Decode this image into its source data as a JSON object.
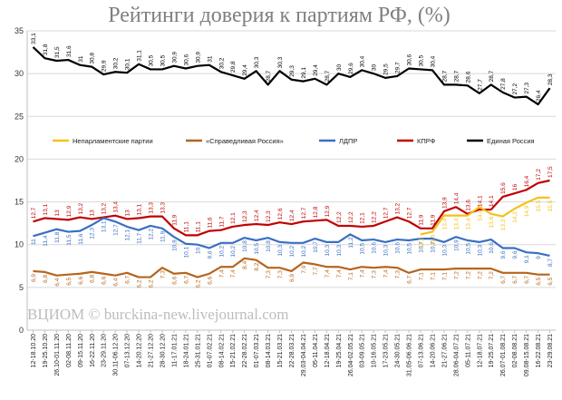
{
  "watermark": "ВЦИОМ © burckina-new.livejournal.com",
  "chart_data": {
    "type": "line",
    "title": "Рейтинги доверия к партиям РФ, (%)",
    "xlabel": "",
    "ylabel": "",
    "ylim": [
      0,
      35
    ],
    "yticks": [
      0,
      5,
      10,
      15,
      20,
      25,
      30,
      35
    ],
    "grid": true,
    "legend_position": "middle-left",
    "x": [
      "12-18.10.20",
      "19-25.10.20",
      "26.10-01.11.20",
      "02-08.11.20",
      "09-15.11.20",
      "16-22.11.20",
      "23-29.11.20",
      "30.11-06.12.20",
      "07-13.12.20",
      "14-20.12.20",
      "21-27.12.20",
      "28-30.12.20",
      "11-17.01.21",
      "18-24.01.21",
      "25-31.01.21",
      "01-07.02.21",
      "08-14.02.21",
      "15-21.02.21",
      "22-28.02.21",
      "01-07.03.21",
      "08-14.03.21",
      "15-21.03.21",
      "22-28.03.21",
      "29.03-04.04.21",
      "05-11.04.21",
      "12-18.04.21",
      "19-25.04.21",
      "26.04-02.05.21",
      "03-09.05.21",
      "10-16.05.21",
      "17-23.05.21",
      "24-30.05.21",
      "31.05-06.06.21",
      "07-13.06.21",
      "14-20.06.21",
      "21-27.06.21",
      "28.06-04.07.21",
      "05-11.07.21",
      "12-18.07.21",
      "19-25.07.21",
      "26.07-01.08.21",
      "02-08.08.21",
      "09.08-15.08.21",
      "16-22.08.21",
      "23-29.08.21"
    ],
    "series": [
      {
        "name": "Единая Россия",
        "color": "#000000",
        "values": [
          33.1,
          31.8,
          31.5,
          31.6,
          31,
          30.8,
          29.9,
          30.2,
          30.1,
          31.1,
          30.5,
          30.5,
          30.9,
          30.6,
          30.9,
          31,
          30.2,
          29.8,
          29.4,
          30.3,
          28.7,
          30.3,
          29.3,
          29.1,
          29.4,
          28.7,
          30,
          29.6,
          30.4,
          30,
          29.5,
          29.7,
          30.6,
          30.5,
          30.4,
          28.7,
          28.7,
          28.6,
          27.7,
          28.7,
          27.8,
          27.2,
          27.3,
          26.4,
          28.3
        ]
      },
      {
        "name": "КПРФ",
        "color": "#c00000",
        "values": [
          12.7,
          13.1,
          13,
          12.9,
          13.2,
          13,
          13.2,
          13.4,
          13,
          13.1,
          13.3,
          13.3,
          11.9,
          11.1,
          11.1,
          11.6,
          11.7,
          12.1,
          12.3,
          12.4,
          12.3,
          12.6,
          12.4,
          12.7,
          12.8,
          12.9,
          12.2,
          12.2,
          12.1,
          12.2,
          12.7,
          13.2,
          12.7,
          11.9,
          11.9,
          13.9,
          14.4,
          13.6,
          14.1,
          14.1,
          15.6,
          16,
          16.4,
          17.2,
          17.5
        ]
      },
      {
        "name": "ЛДПР",
        "color": "#3a6fc4",
        "values": [
          11,
          11.4,
          11.8,
          11.5,
          11.6,
          12.3,
          13.1,
          12.7,
          12.1,
          11.7,
          12.2,
          11.9,
          10.9,
          10.1,
          10,
          9.6,
          10.2,
          10.2,
          10.8,
          10.5,
          10.8,
          10.3,
          10.2,
          10.2,
          10.7,
          10.3,
          10.3,
          11.2,
          10.5,
          10.6,
          10.3,
          10.6,
          10.5,
          10.7,
          10.7,
          10.3,
          10.9,
          10.5,
          10.3,
          10.6,
          9.6,
          9.6,
          9.1,
          9,
          8.7
        ]
      },
      {
        "name": "Непарламентские партии",
        "color": "#f2c21a",
        "values": [
          null,
          null,
          null,
          null,
          null,
          null,
          null,
          null,
          null,
          null,
          null,
          null,
          null,
          null,
          null,
          null,
          null,
          null,
          null,
          null,
          null,
          null,
          null,
          null,
          null,
          null,
          null,
          null,
          null,
          null,
          null,
          null,
          null,
          11.2,
          11.5,
          13.4,
          13.4,
          13.4,
          14.4,
          13.6,
          13.3,
          14.2,
          14.9,
          15.5,
          15.5
        ]
      },
      {
        "name": "«Справедливая Россия»",
        "color": "#b5651d",
        "values": [
          6.9,
          6.8,
          6.4,
          6.5,
          6.6,
          6.8,
          6.6,
          6.4,
          6.7,
          6.2,
          6.2,
          7.3,
          6.6,
          6.7,
          6.2,
          6.6,
          7.4,
          7.4,
          8.4,
          8.2,
          7.3,
          7.3,
          6.9,
          7.9,
          7.7,
          7.4,
          7.4,
          7.1,
          7.4,
          7.3,
          7.4,
          7.3,
          6.7,
          7.1,
          7.1,
          7.1,
          7.2,
          7.2,
          7.2,
          7.2,
          6.7,
          6.7,
          6.7,
          6.5,
          6.5
        ]
      }
    ]
  }
}
